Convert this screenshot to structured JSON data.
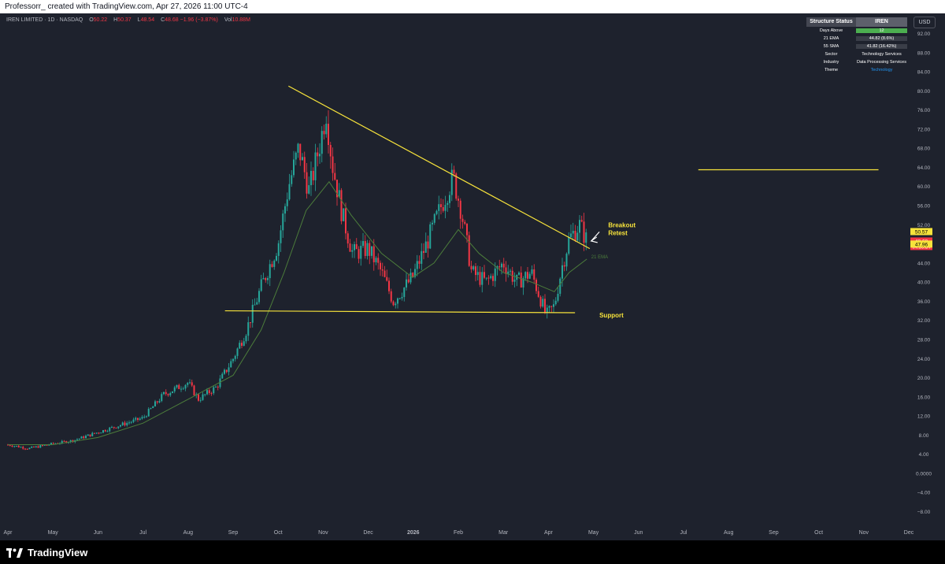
{
  "header": {
    "author_line": "Professorr_ created with TradingView.com, Apr 27, 2026 11:00 UTC-4"
  },
  "legend": {
    "symbol": "IREN LIMITED · 1D · NASDAQ",
    "open_label": "O",
    "open": "50.22",
    "high_label": "H",
    "high": "50.37",
    "low_label": "L",
    "low": "48.54",
    "close_label": "C",
    "close": "48.68",
    "change": "−1.96 (−3.87%)",
    "vol_label": "Vol",
    "vol": "10.88M"
  },
  "status_table": {
    "title": "Structure Status",
    "ticker": "IREN",
    "rows": [
      {
        "label": "Days Above",
        "value": "12",
        "color": "#4caf50"
      },
      {
        "label": "21 EMA",
        "value": "44.82 (8.6%)",
        "color": "#3a3e48"
      },
      {
        "label": "55 SMA",
        "value": "41.82 (16.42%)",
        "color": "#3a3e48"
      },
      {
        "label": "Sector",
        "value": "Technology Services",
        "color": ""
      },
      {
        "label": "Industry",
        "value": "Data Processing Services",
        "color": ""
      },
      {
        "label": "Theme",
        "value": "Technology",
        "color": "",
        "text_color": "#2196f3"
      }
    ]
  },
  "currency": "USD",
  "brand": "TradingView",
  "colors": {
    "up": "#26a69a",
    "down": "#f23645",
    "ema": "#4c7d3b",
    "trendline": "#f7e33b",
    "background": "#1e222d",
    "axis_text": "#b2b5be"
  },
  "chart_data": {
    "type": "candlestick",
    "title": "IREN LIMITED · 1D · NASDAQ",
    "x_axis": {
      "labels": [
        "Apr",
        "May",
        "Jun",
        "Jul",
        "Aug",
        "Sep",
        "Oct",
        "Nov",
        "Dec",
        "2026",
        "Feb",
        "Mar",
        "Apr",
        "May",
        "Jun",
        "Jul",
        "Aug",
        "Sep",
        "Oct",
        "Nov",
        "Dec"
      ],
      "bold_label": "2026"
    },
    "y_axis": {
      "ticks": [
        "92.00",
        "88.00",
        "84.00",
        "80.00",
        "76.00",
        "72.00",
        "68.00",
        "64.00",
        "60.00",
        "56.00",
        "52.00",
        "48.00",
        "44.00",
        "40.00",
        "36.00",
        "32.00",
        "28.00",
        "24.00",
        "20.00",
        "16.00",
        "12.00",
        "8.00",
        "4.00",
        "0.0000",
        "−4.00",
        "−8.00"
      ],
      "range": [
        -9.5,
        95.5
      ]
    },
    "price_series": [
      [
        "Apr 1",
        6.0
      ],
      [
        "Apr 15",
        5.2
      ],
      [
        "May 1",
        6.2
      ],
      [
        "May 15",
        6.9
      ],
      [
        "Jun 1",
        8.6
      ],
      [
        "Jun 15",
        10.0
      ],
      [
        "Jul 1",
        11.6
      ],
      [
        "Jul 15",
        16.5
      ],
      [
        "Aug 1",
        19.0
      ],
      [
        "Aug 8",
        15.5
      ],
      [
        "Aug 20",
        18.0
      ],
      [
        "Sep 1",
        24.0
      ],
      [
        "Sep 10",
        30.0
      ],
      [
        "Sep 20",
        39.0
      ],
      [
        "Oct 1",
        48.0
      ],
      [
        "Oct 8",
        60.0
      ],
      [
        "Oct 15",
        68.0
      ],
      [
        "Oct 22",
        59.0
      ],
      [
        "Oct 30",
        70.0
      ],
      [
        "Nov 3",
        76.0
      ],
      [
        "Nov 7",
        65.0
      ],
      [
        "Nov 14",
        54.0
      ],
      [
        "Nov 21",
        46.0
      ],
      [
        "Dec 1",
        47.0
      ],
      [
        "Dec 10",
        42.0
      ],
      [
        "Dec 18",
        36.0
      ],
      [
        "Dec 31",
        41.0
      ],
      [
        "Jan 10",
        48.0
      ],
      [
        "Jan 20",
        56.0
      ],
      [
        "Jan 28",
        62.0
      ],
      [
        "Feb 3",
        55.0
      ],
      [
        "Feb 10",
        42.0
      ],
      [
        "Feb 20",
        40.0
      ],
      [
        "Mar 1",
        44.0
      ],
      [
        "Mar 10",
        40.0
      ],
      [
        "Mar 20",
        42.0
      ],
      [
        "Mar 30",
        33.0
      ],
      [
        "Apr 5",
        35.0
      ],
      [
        "Apr 10",
        43.0
      ],
      [
        "Apr 15",
        49.0
      ],
      [
        "Apr 22",
        52.0
      ],
      [
        "Apr 27",
        48.68
      ]
    ],
    "ema_series": {
      "name": "21 EMA",
      "points": [
        [
          "Apr 1",
          6.0
        ],
        [
          "May 1",
          6.0
        ],
        [
          "Jun 1",
          7.5
        ],
        [
          "Jul 1",
          10.5
        ],
        [
          "Aug 1",
          15.5
        ],
        [
          "Sep 1",
          20.5
        ],
        [
          "Sep 20",
          30.0
        ],
        [
          "Oct 5",
          42.0
        ],
        [
          "Oct 20",
          55.0
        ],
        [
          "Nov 5",
          61.0
        ],
        [
          "Nov 20",
          54.0
        ],
        [
          "Dec 10",
          46.0
        ],
        [
          "Dec 31",
          41.0
        ],
        [
          "Jan 15",
          44.0
        ],
        [
          "Feb 1",
          51.0
        ],
        [
          "Feb 15",
          46.0
        ],
        [
          "Mar 1",
          42.0
        ],
        [
          "Mar 20",
          40.0
        ],
        [
          "Apr 5",
          38.0
        ],
        [
          "Apr 15",
          42.0
        ],
        [
          "Apr 27",
          44.82
        ]
      ]
    },
    "annotations": [
      {
        "type": "trendline",
        "from": [
          "Oct 8",
          81.0
        ],
        "to": [
          "Apr 29",
          47.0
        ]
      },
      {
        "type": "trendline",
        "from": [
          "Aug 26",
          34.0
        ],
        "to": [
          "Apr 19",
          33.6
        ]
      },
      {
        "type": "trendline",
        "from": [
          "Jul 11",
          63.5
        ],
        "to": [
          "Nov 11",
          63.5
        ]
      },
      {
        "type": "text",
        "text": "Breakout",
        "at": [
          "May 11",
          51.5
        ]
      },
      {
        "type": "text",
        "text": "Retest",
        "at": [
          "May 11",
          49.8
        ]
      },
      {
        "type": "arrow",
        "from": [
          "May 5",
          50.5
        ],
        "to": [
          "Apr 30",
          48.6
        ]
      },
      {
        "type": "text",
        "text": "Support",
        "at": [
          "May 5",
          32.6
        ]
      },
      {
        "type": "text",
        "text": "21 EMA",
        "at": [
          "Apr 30",
          45.0
        ]
      }
    ],
    "price_labels": [
      {
        "value": "50.57",
        "bg": "#f7e33b",
        "fg": "#000000"
      },
      {
        "value": "48.68",
        "bg": "#f23645",
        "fg": "#ffffff",
        "sub": "04:59:34"
      },
      {
        "value": "47.96",
        "bg": "#f7e33b",
        "fg": "#000000"
      }
    ]
  }
}
